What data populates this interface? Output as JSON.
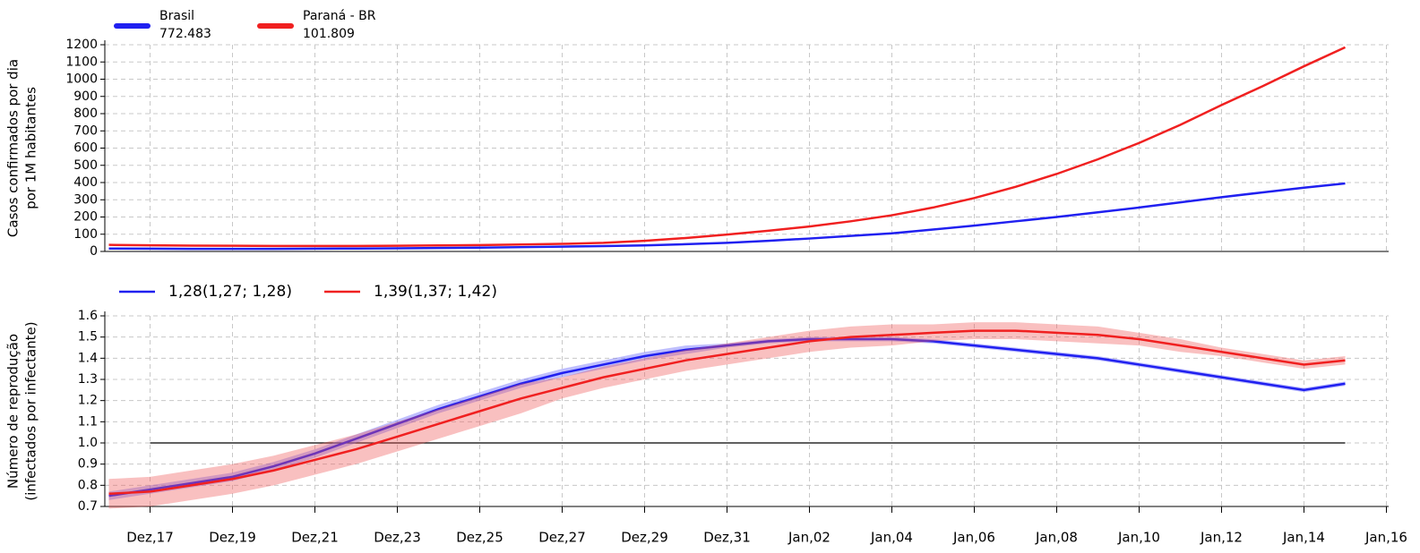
{
  "chart_data": [
    {
      "type": "line",
      "ylabel": [
        "Casos confirmados por dia",
        "por 1M habitantes"
      ],
      "ylim": [
        0,
        1200
      ],
      "yticks": [
        0,
        100,
        200,
        300,
        400,
        500,
        600,
        700,
        800,
        900,
        1000,
        1100,
        1200
      ],
      "grid": true,
      "series": [
        {
          "name": "Brasil",
          "label": "772.483",
          "color": "#2020f0",
          "values": [
            17,
            16,
            15,
            15,
            15,
            16,
            17,
            18,
            20,
            22,
            25,
            28,
            31,
            35,
            42,
            50,
            62,
            75,
            90,
            105,
            127,
            150,
            175,
            200,
            227,
            255,
            285,
            315,
            343,
            370,
            395,
            null
          ]
        },
        {
          "name": "Paraná - BR",
          "label": "101.809",
          "color": "#f02020",
          "values": [
            38,
            36,
            34,
            33,
            32,
            32,
            32,
            33,
            35,
            37,
            40,
            44,
            50,
            62,
            78,
            98,
            120,
            145,
            175,
            210,
            255,
            310,
            375,
            450,
            535,
            630,
            735,
            850,
            960,
            1075,
            1185,
            null
          ]
        }
      ]
    },
    {
      "type": "line",
      "ylabel": [
        "Número de reprodução",
        "(infectados por infectante)"
      ],
      "categories": [
        null,
        "Dez,17",
        null,
        "Dez,19",
        null,
        "Dez,21",
        null,
        "Dez,23",
        null,
        "Dez,25",
        null,
        "Dez,27",
        null,
        "Dez,29",
        null,
        "Dez,31",
        null,
        "Jan,02",
        null,
        "Jan,04",
        null,
        "Jan,06",
        null,
        "Jan,08",
        null,
        "Jan,10",
        null,
        "Jan,12",
        null,
        "Jan,14",
        null,
        "Jan,16"
      ],
      "ylim": [
        0.7,
        1.6
      ],
      "yticks": [
        0.7,
        0.8,
        0.9,
        {
          "value": 1,
          "label": "1.0"
        },
        1.1,
        1.2,
        1.3,
        1.4,
        1.5,
        1.6
      ],
      "grid": true,
      "reference_line": 1,
      "series": [
        {
          "name": "1,28(1,27; 1,28)",
          "color": "#2020f0",
          "band_color": "rgba(110,110,250,0.45)",
          "values": [
            0.75,
            0.78,
            0.81,
            0.84,
            0.89,
            0.95,
            1.02,
            1.09,
            1.16,
            1.22,
            1.28,
            1.33,
            1.37,
            1.41,
            1.44,
            1.46,
            1.48,
            1.49,
            1.49,
            1.49,
            1.48,
            1.46,
            1.44,
            1.42,
            1.4,
            1.37,
            1.34,
            1.31,
            1.28,
            1.25,
            1.28,
            null
          ],
          "lower": [
            0.73,
            0.76,
            0.79,
            0.82,
            0.87,
            0.93,
            1.0,
            1.07,
            1.14,
            1.2,
            1.26,
            1.31,
            1.35,
            1.39,
            1.42,
            1.45,
            1.47,
            1.48,
            1.48,
            1.48,
            1.47,
            1.45,
            1.43,
            1.41,
            1.39,
            1.36,
            1.33,
            1.3,
            1.27,
            1.24,
            1.27,
            null
          ],
          "upper": [
            0.77,
            0.8,
            0.83,
            0.86,
            0.91,
            0.97,
            1.04,
            1.11,
            1.18,
            1.24,
            1.3,
            1.35,
            1.39,
            1.43,
            1.46,
            1.47,
            1.49,
            1.5,
            1.5,
            1.5,
            1.49,
            1.47,
            1.45,
            1.43,
            1.41,
            1.38,
            1.35,
            1.32,
            1.29,
            1.26,
            1.29,
            null
          ]
        },
        {
          "name": "1,39(1,37; 1,42)",
          "color": "#f02020",
          "band_color": "rgba(240,90,90,0.38)",
          "values": [
            0.76,
            0.77,
            0.8,
            0.83,
            0.87,
            0.92,
            0.97,
            1.03,
            1.09,
            1.15,
            1.21,
            1.26,
            1.31,
            1.35,
            1.39,
            1.42,
            1.45,
            1.48,
            1.5,
            1.51,
            1.52,
            1.53,
            1.53,
            1.52,
            1.51,
            1.49,
            1.46,
            1.43,
            1.4,
            1.37,
            1.39,
            null
          ],
          "lower": [
            0.69,
            0.7,
            0.73,
            0.76,
            0.8,
            0.85,
            0.9,
            0.96,
            1.02,
            1.08,
            1.14,
            1.21,
            1.26,
            1.3,
            1.34,
            1.37,
            1.4,
            1.43,
            1.45,
            1.46,
            1.48,
            1.49,
            1.49,
            1.48,
            1.47,
            1.46,
            1.43,
            1.41,
            1.38,
            1.35,
            1.37,
            null
          ],
          "upper": [
            0.83,
            0.84,
            0.87,
            0.9,
            0.94,
            0.99,
            1.04,
            1.1,
            1.16,
            1.22,
            1.28,
            1.31,
            1.36,
            1.4,
            1.44,
            1.47,
            1.5,
            1.53,
            1.55,
            1.56,
            1.56,
            1.57,
            1.57,
            1.56,
            1.55,
            1.52,
            1.49,
            1.45,
            1.42,
            1.39,
            1.41,
            null
          ]
        }
      ]
    }
  ]
}
